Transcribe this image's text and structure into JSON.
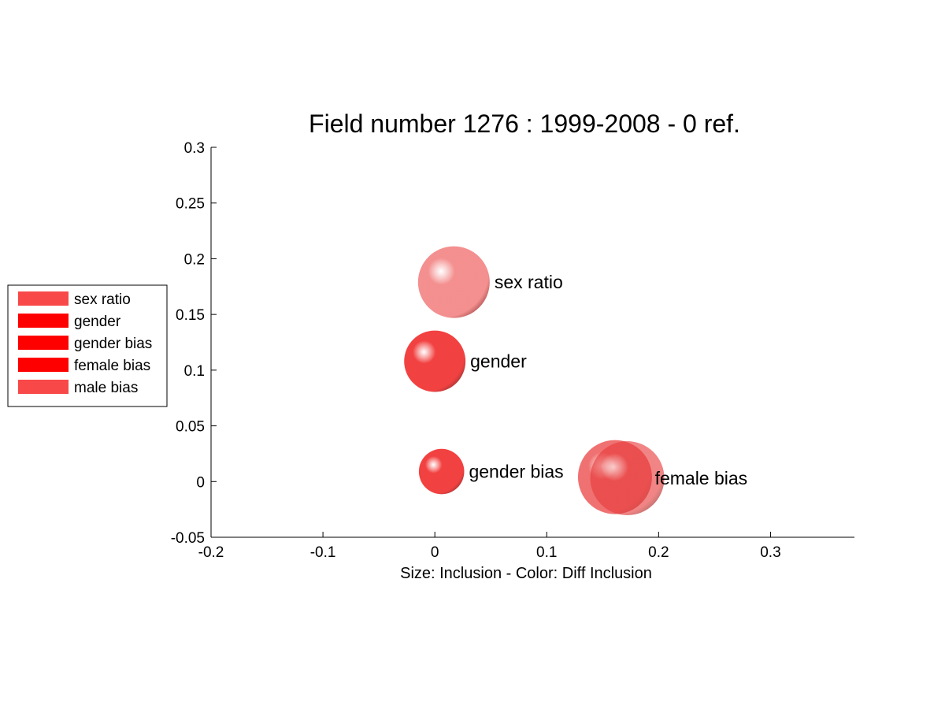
{
  "chart_data": {
    "type": "scatter",
    "title": "Field number 1276 : 1999-2008  - 0 ref.",
    "xlabel": "Size: Inclusion - Color: Diff Inclusion",
    "ylabel": "",
    "xlim": [
      -0.2,
      0.375
    ],
    "ylim": [
      -0.05,
      0.3
    ],
    "xticks": [
      "-0.2",
      "-0.1",
      "0",
      "0.1",
      "0.2",
      "0.3"
    ],
    "yticks": [
      "-0.05",
      "0",
      "0.05",
      "0.1",
      "0.15",
      "0.2",
      "0.25",
      "0.3"
    ],
    "grid": false,
    "legend_position": "left",
    "points": [
      {
        "name": "sex ratio",
        "x": 0.017,
        "y": 0.179,
        "size": 0.75,
        "color": "#f06a6a",
        "opacity": 0.75
      },
      {
        "name": "gender",
        "x": 0.0,
        "y": 0.108,
        "size": 0.55,
        "color": "#f02020",
        "opacity": 0.85
      },
      {
        "name": "gender bias",
        "x": 0.006,
        "y": 0.009,
        "size": 0.3,
        "color": "#f02020",
        "opacity": 0.85
      },
      {
        "name": "female bias",
        "x": 0.172,
        "y": 0.003,
        "size": 0.8,
        "color": "#e83a3a",
        "opacity": 0.62
      },
      {
        "name": "male bias",
        "x": 0.161,
        "y": 0.004,
        "size": 0.8,
        "color": "#e61a1a",
        "opacity": 0.62
      }
    ],
    "labels_shown": [
      {
        "name": "sex ratio",
        "text": "sex ratio"
      },
      {
        "name": "gender",
        "text": "gender"
      },
      {
        "name": "gender bias",
        "text": "gender bias"
      },
      {
        "name": "female bias",
        "text": "female bias"
      }
    ],
    "legend": [
      {
        "name": "sex ratio",
        "color": "#f84848"
      },
      {
        "name": "gender",
        "color": "#ff0000"
      },
      {
        "name": "gender bias",
        "color": "#ff0000"
      },
      {
        "name": "female bias",
        "color": "#ff0000"
      },
      {
        "name": "male bias",
        "color": "#f84848"
      }
    ]
  }
}
